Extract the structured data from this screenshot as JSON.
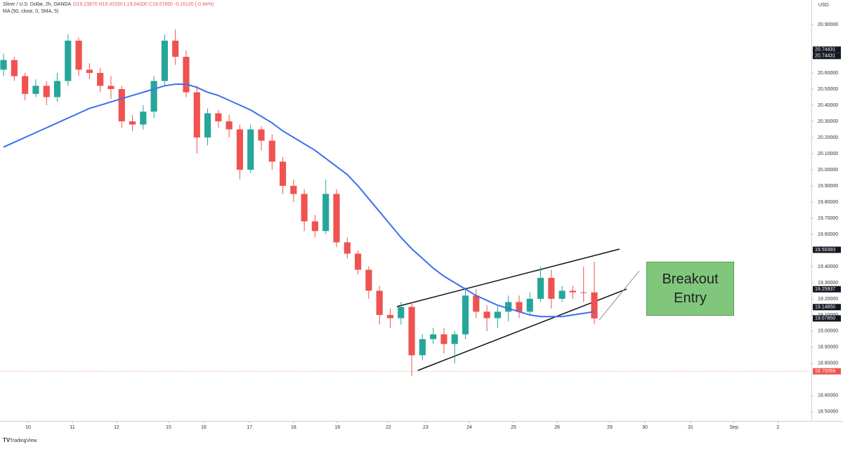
{
  "chart_data": {
    "type": "candlestick",
    "title": "Silver / U.S. Dollar, 2h, OANDA",
    "ohlc_text": "O19.23970 H19.43150 L19.04200 C19.07850 -0.16120 (-0.84%)",
    "y_axis_label": "USD",
    "annotation": "Breakout Entry",
    "brand": "TradingView",
    "up_color": "#26a69a",
    "down_color": "#ef5350",
    "open": [
      20.62,
      20.68,
      20.58,
      20.47,
      20.52,
      20.45,
      20.55,
      20.8,
      20.62,
      20.6,
      20.52,
      20.5,
      20.3,
      20.28,
      20.36,
      20.55,
      20.8,
      20.7,
      20.48,
      20.2,
      20.35,
      20.3,
      20.25,
      20.0,
      20.25,
      20.18,
      20.05,
      19.9,
      19.85,
      19.68,
      19.62,
      19.85,
      19.55,
      19.48,
      19.38,
      19.25,
      19.1,
      19.08,
      19.15,
      18.85,
      18.95,
      18.98,
      18.92,
      18.98,
      19.22,
      19.12,
      19.08,
      19.12,
      19.18,
      19.12,
      19.2,
      19.33,
      19.2,
      19.25,
      19.24,
      19.2397
    ],
    "high": [
      20.72,
      20.7,
      20.6,
      20.56,
      20.55,
      20.6,
      20.84,
      20.82,
      20.66,
      20.63,
      20.58,
      20.52,
      20.34,
      20.4,
      20.58,
      20.84,
      20.87,
      20.74,
      20.52,
      20.38,
      20.37,
      20.34,
      20.28,
      20.28,
      20.27,
      20.22,
      20.08,
      19.94,
      19.88,
      19.72,
      19.94,
      19.88,
      19.58,
      19.5,
      19.4,
      19.28,
      19.14,
      19.18,
      19.18,
      18.98,
      19.02,
      19.02,
      19.0,
      19.27,
      19.26,
      19.16,
      19.16,
      19.22,
      19.22,
      19.24,
      19.4,
      19.38,
      19.28,
      19.28,
      19.4,
      19.4315
    ],
    "low": [
      20.58,
      20.55,
      20.43,
      20.45,
      20.4,
      20.42,
      20.52,
      20.58,
      20.56,
      20.48,
      20.44,
      20.26,
      20.24,
      20.25,
      20.32,
      20.52,
      20.65,
      20.45,
      20.1,
      20.15,
      20.26,
      20.2,
      19.94,
      19.98,
      20.12,
      20.0,
      19.85,
      19.8,
      19.62,
      19.58,
      19.6,
      19.52,
      19.45,
      19.35,
      19.2,
      19.04,
      19.02,
      19.04,
      18.72,
      18.82,
      18.92,
      18.86,
      18.8,
      18.95,
      19.08,
      19.0,
      19.02,
      19.06,
      19.08,
      19.1,
      19.18,
      19.14,
      19.18,
      19.2,
      19.18,
      19.042
    ],
    "close": [
      20.68,
      20.58,
      20.47,
      20.52,
      20.45,
      20.55,
      20.8,
      20.62,
      20.6,
      20.52,
      20.5,
      20.3,
      20.28,
      20.36,
      20.55,
      20.8,
      20.7,
      20.48,
      20.2,
      20.35,
      20.3,
      20.25,
      20.0,
      20.25,
      20.18,
      20.05,
      19.9,
      19.85,
      19.68,
      19.62,
      19.85,
      19.55,
      19.48,
      19.38,
      19.25,
      19.1,
      19.08,
      19.15,
      18.85,
      18.95,
      18.98,
      18.92,
      18.98,
      19.22,
      19.12,
      19.08,
      19.12,
      19.18,
      19.12,
      19.2,
      19.33,
      19.2,
      19.25,
      19.24,
      19.2397,
      19.0785
    ],
    "series": [
      {
        "name": "MA (50, close, 0, SMA, 5)",
        "color": "#3b6ff0",
        "values": [
          20.14,
          20.17,
          20.2,
          20.23,
          20.26,
          20.29,
          20.32,
          20.35,
          20.38,
          20.4,
          20.42,
          20.44,
          20.46,
          20.48,
          20.5,
          20.52,
          20.53,
          20.53,
          20.51,
          20.48,
          20.46,
          20.43,
          20.4,
          20.37,
          20.33,
          20.29,
          20.24,
          20.2,
          20.16,
          20.12,
          20.07,
          20.02,
          19.97,
          19.9,
          19.82,
          19.74,
          19.66,
          19.58,
          19.51,
          19.45,
          19.39,
          19.34,
          19.3,
          19.26,
          19.22,
          19.19,
          19.16,
          19.14,
          19.12,
          19.1,
          19.09,
          19.09,
          19.09,
          19.1,
          19.11,
          19.12
        ]
      }
    ],
    "ylim": [
      18.443,
      21.052
    ],
    "yticks": [
      {
        "value": 20.9,
        "label": "20.90000"
      },
      {
        "value": 20.7,
        "label": "20.70000"
      },
      {
        "value": 20.6,
        "label": "20.60000"
      },
      {
        "value": 20.5,
        "label": "20.50000"
      },
      {
        "value": 20.4,
        "label": "20.40000"
      },
      {
        "value": 20.3,
        "label": "20.30000"
      },
      {
        "value": 20.2,
        "label": "20.20000"
      },
      {
        "value": 20.1,
        "label": "20.10000"
      },
      {
        "value": 20.0,
        "label": "20.00000"
      },
      {
        "value": 19.9,
        "label": "19.90000"
      },
      {
        "value": 19.8,
        "label": "19.80000"
      },
      {
        "value": 19.7,
        "label": "19.70000"
      },
      {
        "value": 19.6,
        "label": "19.60000"
      },
      {
        "value": 19.4,
        "label": "19.40000"
      },
      {
        "value": 19.3,
        "label": "19.30000"
      },
      {
        "value": 19.2,
        "label": "19.20000"
      },
      {
        "value": 19.1,
        "label": "19.10000"
      },
      {
        "value": 19.0,
        "label": "19.00000"
      },
      {
        "value": 18.9,
        "label": "18.90000"
      },
      {
        "value": 18.8,
        "label": "18.80000"
      },
      {
        "value": 18.6,
        "label": "18.60000"
      },
      {
        "value": 18.5,
        "label": "18.50000"
      }
    ],
    "price_labels": [
      20.74431,
      20.74431,
      19.50393,
      19.25937,
      {
        "value": 19.1485,
        "label": "19.14850"
      },
      {
        "value": 19.0785,
        "label": "19.07850"
      },
      18.75069
    ],
    "xlim": [
      -0.33,
      75.21
    ],
    "xticks": [
      {
        "value": 2.29,
        "label": "10"
      },
      {
        "value": 6.41,
        "label": "11"
      },
      {
        "value": 10.53,
        "label": "12"
      },
      {
        "value": 15.37,
        "label": "15"
      },
      {
        "value": 18.64,
        "label": "16"
      },
      {
        "value": 22.9,
        "label": "17"
      },
      {
        "value": 27.0,
        "label": "18"
      },
      {
        "value": 31.07,
        "label": "19"
      },
      {
        "value": 35.84,
        "label": "22"
      },
      {
        "value": 39.3,
        "label": "23"
      },
      {
        "value": 43.36,
        "label": "24"
      },
      {
        "value": 47.48,
        "label": "25"
      },
      {
        "value": 51.54,
        "label": "26"
      },
      {
        "value": 56.44,
        "label": "29"
      },
      {
        "value": 59.71,
        "label": "30"
      },
      {
        "value": 63.96,
        "label": "31"
      },
      {
        "value": 68.0,
        "label": "Sep"
      },
      {
        "value": 72.1,
        "label": "2"
      }
    ]
  }
}
